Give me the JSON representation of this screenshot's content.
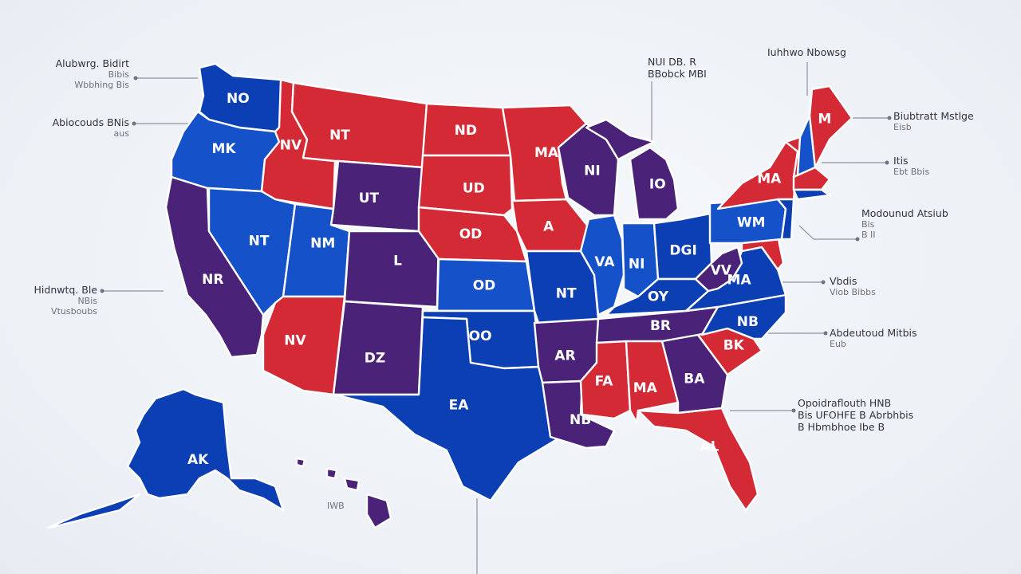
{
  "colors": {
    "red": "#d42a35",
    "blue": "#0d3fb4",
    "blue_light": "#1552c9",
    "purple": "#4a2378",
    "background": "#eef2f7"
  },
  "states": [
    {
      "id": "wa",
      "label": "NO",
      "color": "blue"
    },
    {
      "id": "or",
      "label": "MK",
      "color": "blue_light"
    },
    {
      "id": "ca",
      "label": "NR",
      "color": "purple"
    },
    {
      "id": "id",
      "label": "NV",
      "color": "red"
    },
    {
      "id": "nv",
      "label": "NT",
      "color": "blue_light"
    },
    {
      "id": "mt",
      "label": "NT",
      "color": "red"
    },
    {
      "id": "wy",
      "label": "UT",
      "color": "purple"
    },
    {
      "id": "ut",
      "label": "NM",
      "color": "blue_light"
    },
    {
      "id": "az",
      "label": "NV",
      "color": "red"
    },
    {
      "id": "co",
      "label": "L",
      "color": "purple"
    },
    {
      "id": "nm",
      "label": "DZ",
      "color": "purple"
    },
    {
      "id": "nd",
      "label": "ND",
      "color": "red"
    },
    {
      "id": "sd",
      "label": "UD",
      "color": "red"
    },
    {
      "id": "ne",
      "label": "OD",
      "color": "red"
    },
    {
      "id": "ks",
      "label": "OD",
      "color": "blue_light"
    },
    {
      "id": "ok",
      "label": "OO",
      "color": "blue"
    },
    {
      "id": "tx",
      "label": "EA",
      "color": "blue"
    },
    {
      "id": "mn",
      "label": "MA",
      "color": "red"
    },
    {
      "id": "ia",
      "label": "A",
      "color": "red"
    },
    {
      "id": "mo",
      "label": "NT",
      "color": "blue"
    },
    {
      "id": "ar",
      "label": "AR",
      "color": "purple"
    },
    {
      "id": "la",
      "label": "NB",
      "color": "purple"
    },
    {
      "id": "wi",
      "label": "NI",
      "color": "purple"
    },
    {
      "id": "mi",
      "label": "IO",
      "color": "purple"
    },
    {
      "id": "il",
      "label": "VA",
      "color": "blue_light"
    },
    {
      "id": "in",
      "label": "NI",
      "color": "blue_light"
    },
    {
      "id": "oh",
      "label": "DGI",
      "color": "blue"
    },
    {
      "id": "ky",
      "label": "OY",
      "color": "blue"
    },
    {
      "id": "tn",
      "label": "BR",
      "color": "purple"
    },
    {
      "id": "ms",
      "label": "FA",
      "color": "red"
    },
    {
      "id": "al",
      "label": "MA",
      "color": "red"
    },
    {
      "id": "ga",
      "label": "BA",
      "color": "purple"
    },
    {
      "id": "fl",
      "label": "AL",
      "color": "red"
    },
    {
      "id": "sc",
      "label": "BK",
      "color": "red"
    },
    {
      "id": "nc",
      "label": "NB",
      "color": "blue"
    },
    {
      "id": "va",
      "label": "MA",
      "color": "blue"
    },
    {
      "id": "wv",
      "label": "VV",
      "color": "purple"
    },
    {
      "id": "pa",
      "label": "WM",
      "color": "blue_light"
    },
    {
      "id": "ny",
      "label": "MA",
      "color": "red"
    },
    {
      "id": "me",
      "label": "M",
      "color": "red"
    },
    {
      "id": "vt",
      "label": "",
      "color": "red"
    },
    {
      "id": "nh",
      "label": "",
      "color": "blue_light"
    },
    {
      "id": "ma",
      "label": "",
      "color": "red"
    },
    {
      "id": "ct",
      "label": "",
      "color": "blue"
    },
    {
      "id": "nj",
      "label": "",
      "color": "blue"
    },
    {
      "id": "md",
      "label": "",
      "color": "red"
    },
    {
      "id": "ak",
      "label": "AK",
      "color": "blue"
    },
    {
      "id": "hi",
      "label": "",
      "color": "purple"
    }
  ],
  "annotations": {
    "top_left": {
      "l1": "Alubwrg. Bidirt",
      "l2": "Bibis",
      "l3": "Wbbhing Bis"
    },
    "left_mid": {
      "l1": "Abiocouds BNis",
      "l2": "aus"
    },
    "left_lower": {
      "l1": "Hidnwtq. Ble",
      "l2": "NBis",
      "l3": "Vtusboubs"
    },
    "top_center": {
      "l1": "NUI DB. R",
      "l2": "BBobck MBI"
    },
    "top_right": {
      "l1": "Iuhhwo Nbowsg"
    },
    "right_1": {
      "l1": "Biubtratt Mstlge",
      "l2": "Eisb"
    },
    "right_2": {
      "l1": "Itis",
      "l2": "Ebt Bbis"
    },
    "right_3": {
      "l1": "Modounud Atsiub",
      "l2": "Bis",
      "l3": "B II"
    },
    "right_4": {
      "l1": "Vbdis",
      "l2": "Viob Bibbs"
    },
    "right_5": {
      "l1": "Abdeutoud Mitbis",
      "l2": "Eub"
    },
    "right_6": {
      "l1": "Opoidraflouth HNB",
      "l2": "Bis UFOHFE B  Abrbhbis",
      "l3": "B Hbmbhoe  Ibe B"
    },
    "hawaii_tag": {
      "l1": "IWB"
    }
  }
}
